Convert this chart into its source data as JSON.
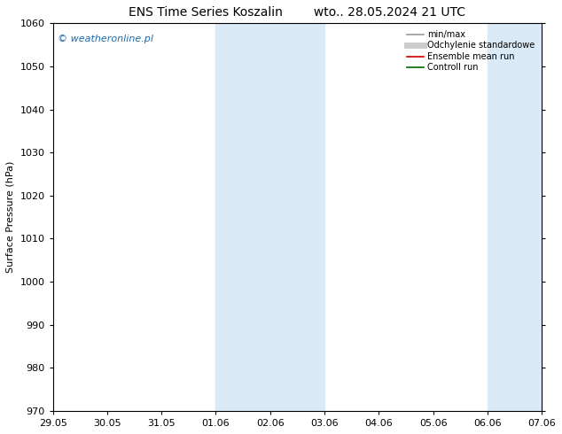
{
  "title_left": "ENS Time Series Koszalin",
  "title_right": "wto.. 28.05.2024 21 UTC",
  "ylabel": "Surface Pressure (hPa)",
  "ylim": [
    970,
    1060
  ],
  "yticks": [
    970,
    980,
    990,
    1000,
    1010,
    1020,
    1030,
    1040,
    1050,
    1060
  ],
  "xtick_labels": [
    "29.05",
    "30.05",
    "31.05",
    "01.06",
    "02.06",
    "03.06",
    "04.06",
    "05.06",
    "06.06",
    "07.06"
  ],
  "xtick_positions": [
    0,
    1,
    2,
    3,
    4,
    5,
    6,
    7,
    8,
    9
  ],
  "xlim": [
    0,
    9
  ],
  "shaded_bands": [
    {
      "xstart": 3.0,
      "xend": 4.0
    },
    {
      "xstart": 4.0,
      "xend": 5.0
    },
    {
      "xstart": 8.0,
      "xend": 9.0
    }
  ],
  "shade_color": "#daeaf7",
  "background_color": "#ffffff",
  "plot_bg_color": "#ffffff",
  "legend_entries": [
    {
      "label": "min/max",
      "color": "#999999",
      "lw": 1.2,
      "style": "-"
    },
    {
      "label": "Odchylenie standardowe",
      "color": "#cccccc",
      "lw": 5,
      "style": "-"
    },
    {
      "label": "Ensemble mean run",
      "color": "#cc0000",
      "lw": 1.2,
      "style": "-"
    },
    {
      "label": "Controll run",
      "color": "#006600",
      "lw": 1.2,
      "style": "-"
    }
  ],
  "watermark": "© weatheronline.pl",
  "watermark_color": "#1a6aad",
  "title_fontsize": 10,
  "axis_label_fontsize": 8,
  "tick_fontsize": 8,
  "legend_fontsize": 7
}
